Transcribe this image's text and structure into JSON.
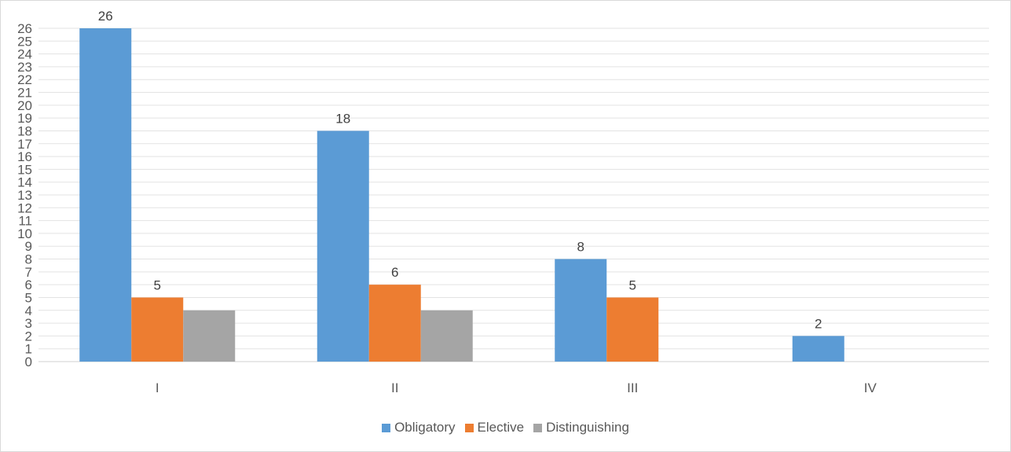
{
  "chart_data": {
    "type": "bar",
    "categories": [
      "I",
      "II",
      "III",
      "IV"
    ],
    "series": [
      {
        "name": "Obligatory",
        "values": [
          26,
          18,
          8,
          2
        ],
        "color": "#5b9bd5"
      },
      {
        "name": "Elective",
        "values": [
          5,
          6,
          5,
          0
        ],
        "color": "#ed7d31"
      },
      {
        "name": "Distinguishing",
        "values": [
          4,
          4,
          0,
          0
        ],
        "color": "#a5a5a5"
      }
    ],
    "data_labels": [
      {
        "series": 0,
        "category": 0,
        "text": "26"
      },
      {
        "series": 1,
        "category": 0,
        "text": "5"
      },
      {
        "series": 0,
        "category": 1,
        "text": "18"
      },
      {
        "series": 1,
        "category": 1,
        "text": "6"
      },
      {
        "series": 0,
        "category": 2,
        "text": "8"
      },
      {
        "series": 1,
        "category": 2,
        "text": "5"
      },
      {
        "series": 0,
        "category": 3,
        "text": "2"
      }
    ],
    "ylim": [
      0,
      26
    ],
    "ytick_step": 1,
    "grid": true,
    "legend_position": "bottom",
    "title": "",
    "xlabel": "",
    "ylabel": ""
  }
}
